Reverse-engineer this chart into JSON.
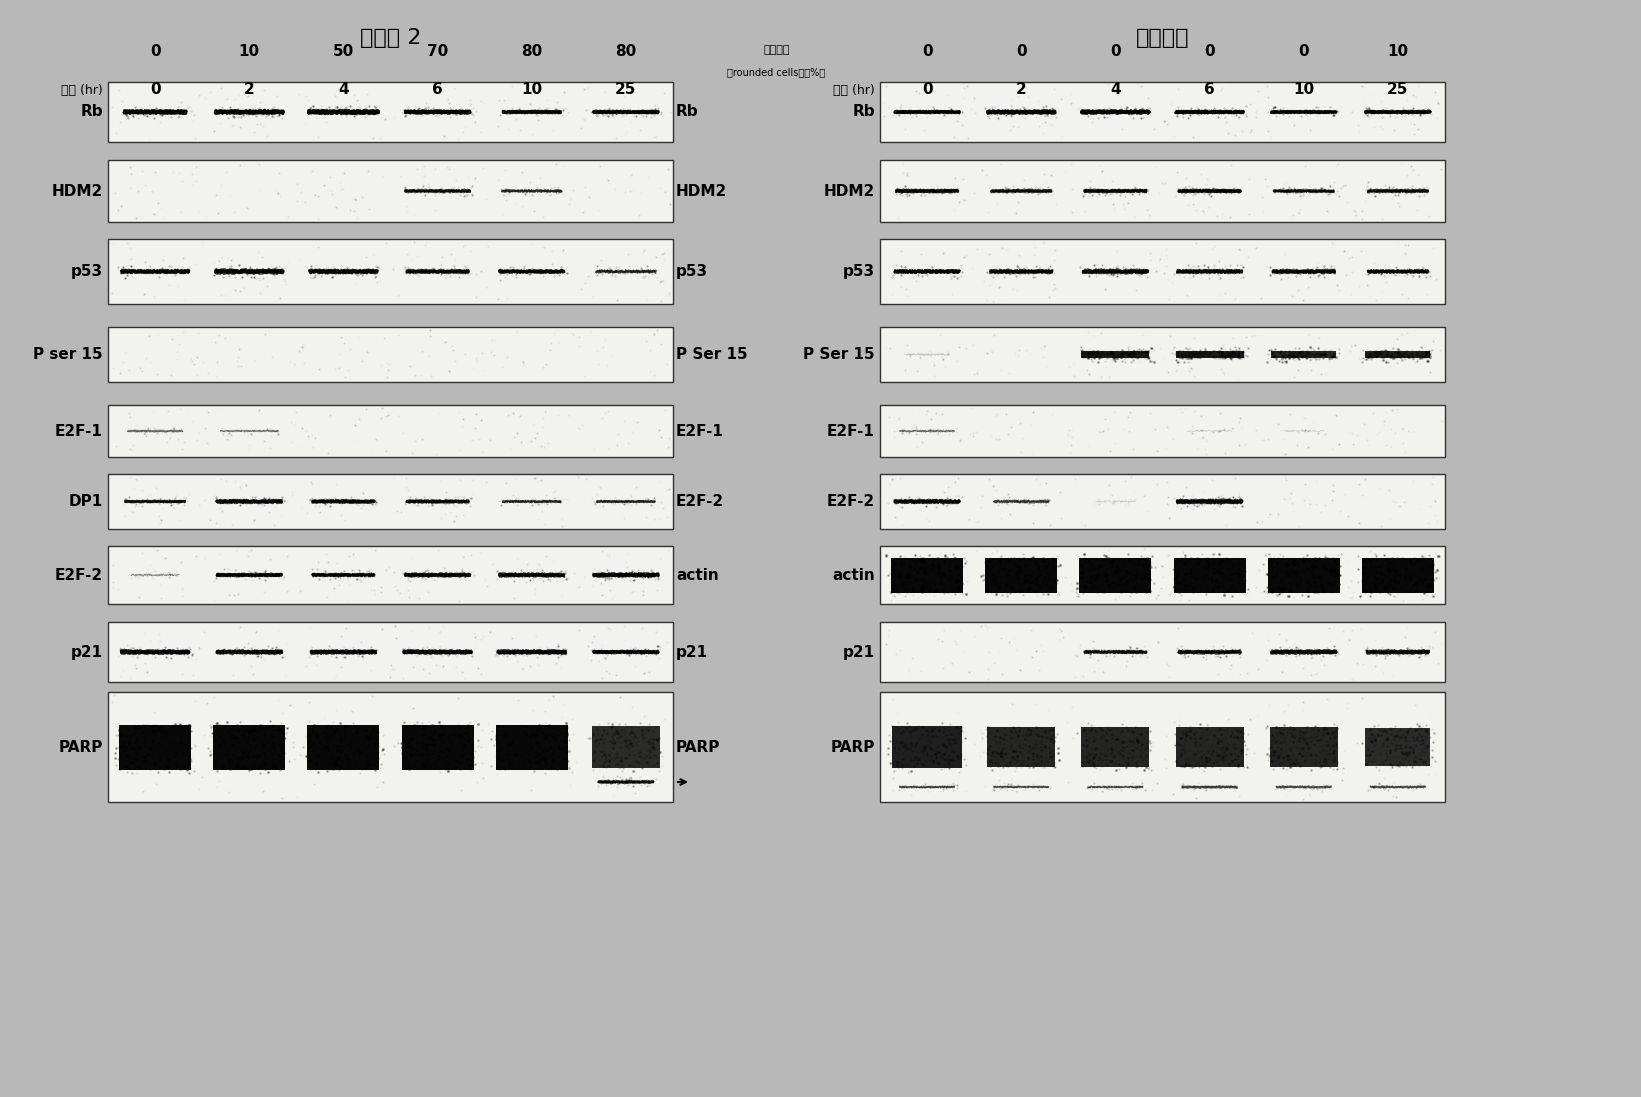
{
  "title_left": "化合物 2",
  "title_right": "依托泊苷",
  "left_rounded": [
    "0",
    "10",
    "50",
    "70",
    "80",
    "80"
  ],
  "right_rounded": [
    "0",
    "0",
    "0",
    "0",
    "0",
    "10"
  ],
  "timepoints": [
    "0",
    "2",
    "4",
    "6",
    "10",
    "25"
  ],
  "left_labels": [
    "Rb",
    "HDM2",
    "p53",
    "P ser 15",
    "E2F-1",
    "DP1",
    "E2F-2",
    "p21",
    "PARP"
  ],
  "right_labels": [
    "Rb",
    "HDM2",
    "p53",
    "P Ser 15",
    "E2F-1",
    "E2F-2",
    "actin",
    "p21",
    "PARP"
  ],
  "bg_color": "#b8b8b8",
  "panel_bg": "#f2f2ee",
  "panel_border": "#333333"
}
